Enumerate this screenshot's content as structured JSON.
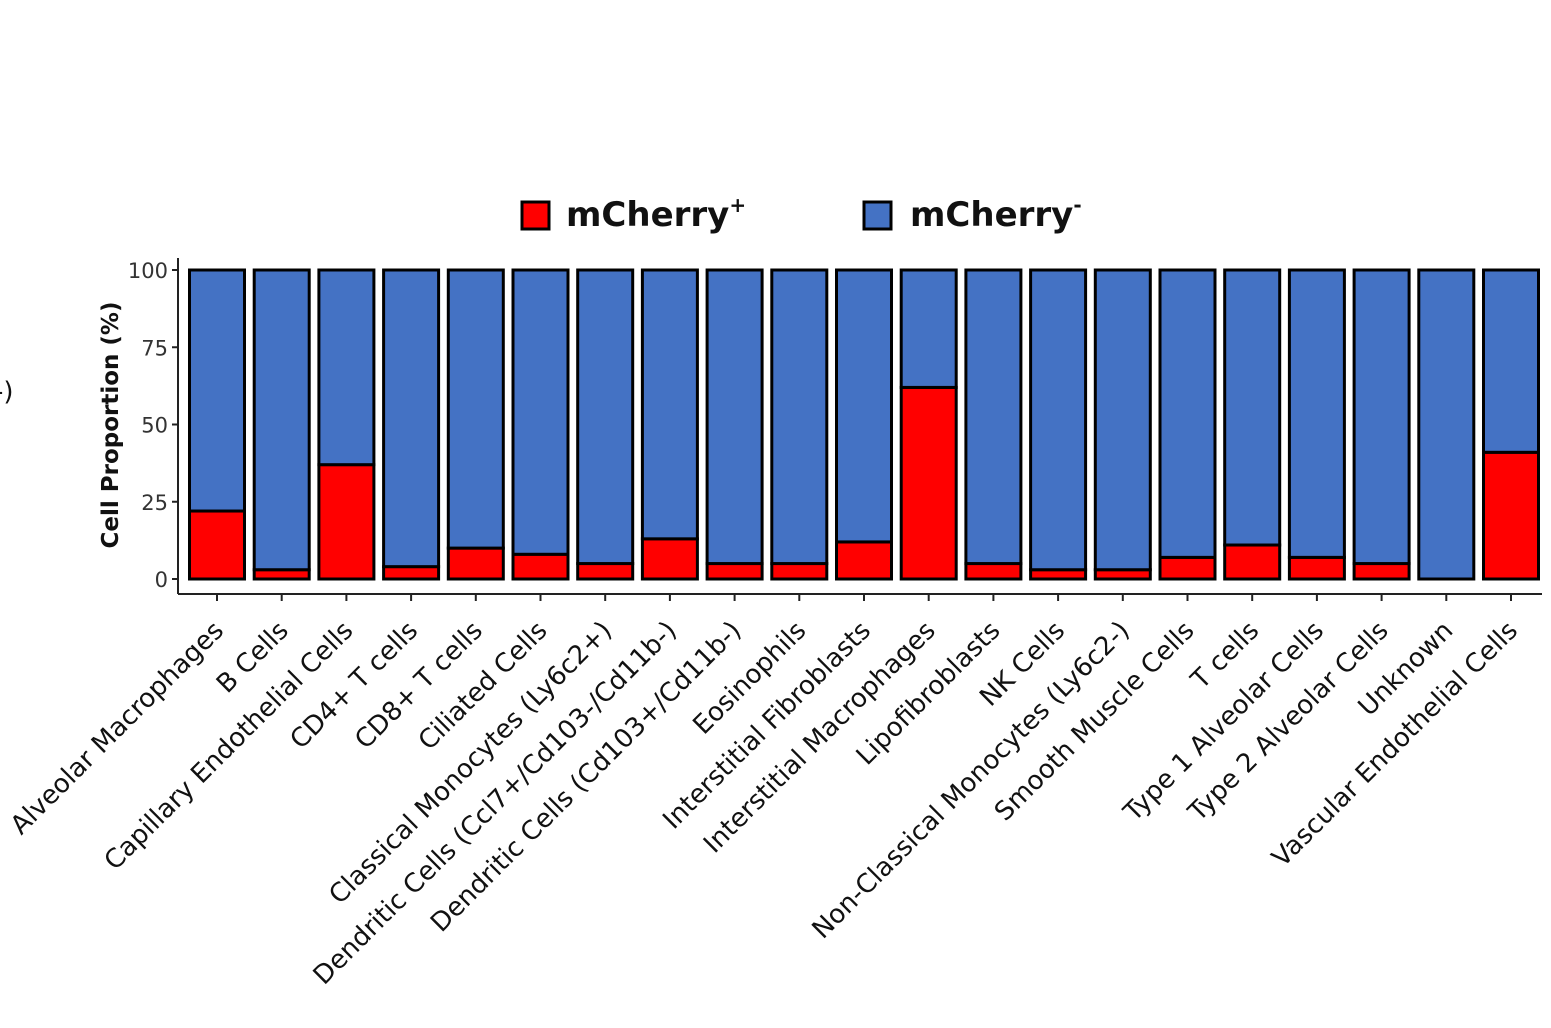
{
  "edge_fragment": "-)",
  "chart_data": {
    "type": "bar",
    "stacked": true,
    "ylabel": "Cell Proportion (%)",
    "xlabel": "",
    "ylim": [
      0,
      100
    ],
    "yticks": [
      0,
      25,
      50,
      75,
      100
    ],
    "grid": false,
    "legend_position": "top",
    "categories": [
      "Alveolar Macrophages",
      "B Cells",
      "Capillary Endothelial Cells",
      "CD4+ T cells",
      "CD8+ T cells",
      "Ciliated Cells",
      "Classical Monocytes (Ly6c2+)",
      "Dendritic Cells (Ccl7+/Cd103-/Cd11b-)",
      "Dendritic Cells (Cd103+/Cd11b-)",
      "Eosinophils",
      "Interstitial Fibroblasts",
      "Interstitial Macrophages",
      "Lipofibroblasts",
      "NK Cells",
      "Non-Classical Monocytes (Ly6c2-)",
      "Smooth Muscle Cells",
      "T cells",
      "Type 1 Alveolar Cells",
      "Type 2 Alveolar Cells",
      "Unknown",
      "Vascular Endothelial Cells"
    ],
    "series": [
      {
        "name": "mCherry+",
        "label_main": "mCherry",
        "label_sup": "+",
        "color": "#ff0000",
        "values": [
          22,
          3,
          37,
          4,
          10,
          8,
          5,
          13,
          5,
          5,
          12,
          62,
          5,
          3,
          3,
          7,
          11,
          7,
          5,
          0,
          41
        ]
      },
      {
        "name": "mCherry-",
        "label_main": "mCherry",
        "label_sup": "-",
        "color": "#4472c4",
        "values": [
          78,
          97,
          63,
          96,
          90,
          92,
          95,
          87,
          95,
          95,
          88,
          38,
          95,
          97,
          97,
          93,
          89,
          93,
          95,
          100,
          59
        ]
      }
    ]
  }
}
